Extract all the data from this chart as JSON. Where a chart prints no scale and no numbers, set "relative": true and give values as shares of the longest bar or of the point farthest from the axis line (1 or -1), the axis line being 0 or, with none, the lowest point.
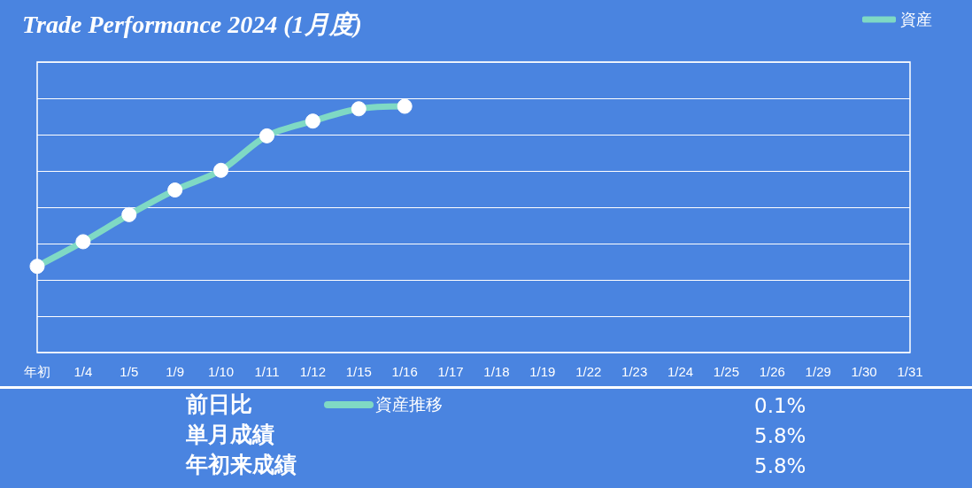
{
  "chart_data": {
    "type": "line",
    "title": "Trade Performance 2024 (1月度)",
    "relative": true,
    "categories": [
      "年初",
      "1/4",
      "1/5",
      "1/9",
      "1/10",
      "1/11",
      "1/12",
      "1/15",
      "1/16",
      "1/17",
      "1/18",
      "1/19",
      "1/22",
      "1/23",
      "1/24",
      "1/25",
      "1/26",
      "1/29",
      "1/30",
      "1/31"
    ],
    "series": [
      {
        "name": "資産",
        "color": "#7fd9c4",
        "values": [
          0.35,
          0.45,
          0.56,
          0.66,
          0.74,
          0.88,
          0.94,
          0.99,
          1,
          null,
          null,
          null,
          null,
          null,
          null,
          null,
          null,
          null,
          null,
          null
        ]
      }
    ],
    "grid": "y",
    "legend": "top right",
    "marker": "circle",
    "line_style": "solid",
    "annotations": [
      "前日比",
      "0.1%",
      "単月成績",
      "5.8%",
      "年初来成績",
      "5.8%",
      "資産推移"
    ]
  }
}
